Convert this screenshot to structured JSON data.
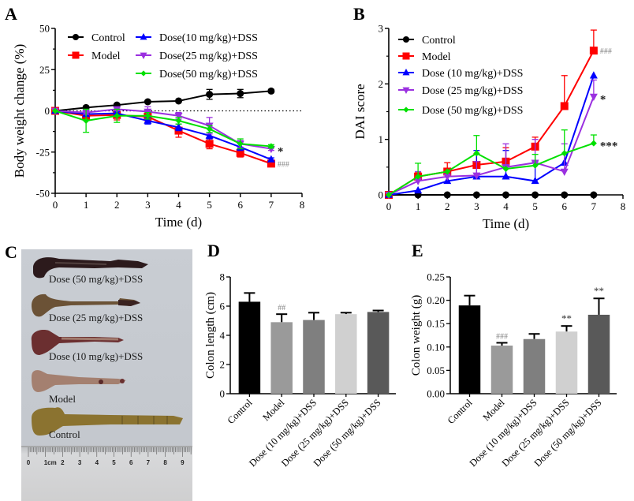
{
  "figure": {
    "panels": [
      "A",
      "B",
      "C",
      "D",
      "E"
    ]
  },
  "colors": {
    "Control": "#000000",
    "Model": "#ff0000",
    "Dose10": "#0000ff",
    "Dose25": "#9b30e0",
    "Dose50": "#00e000",
    "bar_control": "#000000",
    "bar_model": "#9a9a9a",
    "bar_dose10": "#7f7f7f",
    "bar_dose25": "#d0d0d0",
    "bar_dose50": "#595959",
    "sig_gray": "#888888"
  },
  "photo": {
    "letter": "C",
    "labels": [
      "Dose (50 mg/kg)+DSS",
      "Dose (25 mg/kg)+DSS",
      "Dose (10 mg/kg)+DSS",
      "Model",
      "Control"
    ],
    "ruler_numbers": [
      "0",
      "1cm",
      "2",
      "3",
      "4",
      "5",
      "6",
      "7",
      "8",
      "9"
    ]
  },
  "chart_data": [
    {
      "id": "A",
      "type": "line",
      "title": "",
      "xlabel": "Time (d)",
      "ylabel": "Body weight change (%)",
      "xlim": [
        0,
        8
      ],
      "ylim": [
        -50,
        50
      ],
      "xticks": [
        0,
        1,
        2,
        3,
        4,
        5,
        6,
        7,
        8
      ],
      "yticks": [
        -50,
        -25,
        0,
        25,
        50
      ],
      "ytick_labels": [
        "-50",
        "-25",
        "0",
        "25",
        "50"
      ],
      "reference_line": 0,
      "legend": "top",
      "x": [
        0,
        1,
        2,
        3,
        4,
        5,
        6,
        7
      ],
      "series": [
        {
          "name": "Control",
          "legend_label": "Control",
          "marker": "circle",
          "color_key": "Control",
          "values": [
            0,
            2,
            3.5,
            5.5,
            6,
            10,
            10.5,
            12
          ],
          "errors": [
            0,
            0.5,
            0.8,
            0.8,
            0.8,
            3,
            2.5,
            1
          ]
        },
        {
          "name": "Model",
          "legend_label": "Model",
          "marker": "square",
          "color_key": "Model",
          "values": [
            0,
            -3,
            -2.5,
            -3.5,
            -12,
            -20,
            -25.5,
            -32
          ],
          "errors": [
            0,
            2,
            3,
            3,
            4,
            3,
            2.5,
            1
          ]
        },
        {
          "name": "Dose10",
          "legend_label": "Dose(10 mg/kg)+DSS",
          "marker": "triangle-up",
          "color_key": "Dose10",
          "values": [
            0,
            -2,
            -1.5,
            -6,
            -10,
            -15,
            -22,
            -29.5
          ],
          "errors": [
            0,
            1,
            1,
            2,
            2,
            2,
            2,
            1
          ]
        },
        {
          "name": "Dose25",
          "legend_label": "Dose(25 mg/kg)+DSS",
          "marker": "triangle-down",
          "color_key": "Dose25",
          "values": [
            0,
            -1,
            1,
            -0.5,
            -3,
            -9,
            -20,
            -23
          ],
          "errors": [
            0,
            1,
            1,
            3,
            2,
            5,
            2,
            1
          ]
        },
        {
          "name": "Dose50",
          "legend_label": "Dose(50 mg/kg)+DSS",
          "marker": "diamond",
          "color_key": "Dose50",
          "values": [
            0,
            -6,
            -3,
            -3,
            -6,
            -11,
            -20,
            -21.5
          ],
          "errors": [
            0,
            7,
            4,
            2,
            2,
            2,
            3,
            1
          ]
        }
      ],
      "annotations": [
        {
          "text": "*",
          "x": 7,
          "y": -23,
          "color_key": "bold"
        },
        {
          "text": "###",
          "x": 7,
          "y": -32,
          "color_key": "sig_gray"
        }
      ]
    },
    {
      "id": "B",
      "type": "line",
      "title": "",
      "xlabel": "Time (d)",
      "ylabel": "DAI score",
      "xlim": [
        0,
        8
      ],
      "ylim": [
        0,
        3
      ],
      "xticks": [
        0,
        1,
        2,
        3,
        4,
        5,
        6,
        7,
        8
      ],
      "yticks": [
        0,
        1,
        2,
        3
      ],
      "ytick_labels": [
        "0",
        "1",
        "2",
        "3"
      ],
      "legend": "top-left",
      "x": [
        0,
        1,
        2,
        3,
        4,
        5,
        6,
        7
      ],
      "series": [
        {
          "name": "Control",
          "legend_label": "Control",
          "marker": "circle",
          "color_key": "Control",
          "values": [
            0,
            0,
            0,
            0,
            0,
            0,
            0,
            0
          ],
          "errors": [
            0,
            0,
            0,
            0,
            0,
            0,
            0,
            0
          ]
        },
        {
          "name": "Model",
          "legend_label": "Model",
          "marker": "square",
          "color_key": "Model",
          "values": [
            0,
            0.33,
            0.42,
            0.54,
            0.6,
            0.87,
            1.6,
            2.6
          ],
          "errors": [
            0,
            0.07,
            0.16,
            0.2,
            0.25,
            0.17,
            0.55,
            0.37
          ]
        },
        {
          "name": "Dose10",
          "legend_label": "Dose (10 mg/kg)+DSS",
          "marker": "triangle-up",
          "color_key": "Dose10",
          "values": [
            0,
            0.08,
            0.25,
            0.33,
            0.33,
            0.25,
            0.58,
            2.15
          ],
          "errors": [
            0,
            0,
            0,
            0.47,
            0.47,
            0.35,
            0.15,
            0
          ]
        },
        {
          "name": "Dose25",
          "legend_label": "Dose (25 mg/kg)+DSS",
          "marker": "triangle-down",
          "color_key": "Dose25",
          "values": [
            0,
            0.25,
            0.33,
            0.35,
            0.5,
            0.58,
            0.42,
            1.77
          ],
          "errors": [
            0,
            0.17,
            0,
            0.25,
            0.42,
            0.42,
            0.5,
            0.3
          ]
        },
        {
          "name": "Dose50",
          "legend_label": "Dose (50 mg/kg)+DSS",
          "marker": "diamond",
          "color_key": "Dose50",
          "values": [
            0,
            0.33,
            0.42,
            0.75,
            0.47,
            0.53,
            0.75,
            0.93
          ],
          "errors": [
            0,
            0.24,
            0,
            0.32,
            0,
            0.2,
            0.42,
            0.15
          ]
        }
      ],
      "annotations": [
        {
          "text": "###",
          "x": 7,
          "y": 2.6,
          "color_key": "sig_gray"
        },
        {
          "text": "*",
          "x": 7,
          "y": 1.77,
          "color_key": "bold"
        },
        {
          "text": "***",
          "x": 7,
          "y": 0.93,
          "color_key": "bold"
        }
      ]
    },
    {
      "id": "D",
      "type": "bar",
      "title": "",
      "xlabel": "",
      "ylabel": "Colon length (cm)",
      "ylim": [
        0,
        8
      ],
      "yticks": [
        0,
        2,
        4,
        6,
        8
      ],
      "ytick_labels": [
        "0",
        "2",
        "4",
        "6",
        "8"
      ],
      "categories": [
        "Control",
        "Model",
        "Dose (10 mg/kg)+DSS",
        "Dose (25 mg/kg)+DSS",
        "Dose (50 mg/kg)+DSS"
      ],
      "values": [
        6.3,
        4.9,
        5.05,
        5.45,
        5.6
      ],
      "errors": [
        0.6,
        0.55,
        0.5,
        0.1,
        0.1
      ],
      "bar_color_keys": [
        "bar_control",
        "bar_model",
        "bar_dose10",
        "bar_dose25",
        "bar_dose50"
      ],
      "annotations": [
        {
          "text": "##",
          "category": 1,
          "color_key": "sig_gray"
        }
      ]
    },
    {
      "id": "E",
      "type": "bar",
      "title": "",
      "xlabel": "",
      "ylabel": "Colon weight (g)",
      "ylim": [
        0,
        0.25
      ],
      "yticks": [
        0,
        0.05,
        0.1,
        0.15,
        0.2,
        0.25
      ],
      "ytick_labels": [
        "0.00",
        "0.05",
        "0.10",
        "0.15",
        "0.20",
        "0.25"
      ],
      "categories": [
        "Control",
        "Model",
        "Dose (10 mg/kg)+DSS",
        "Dose (25 mg/kg)+DSS",
        "Dose (50 mg/kg)+DSS"
      ],
      "values": [
        0.189,
        0.103,
        0.117,
        0.133,
        0.169
      ],
      "errors": [
        0.021,
        0.006,
        0.011,
        0.012,
        0.035
      ],
      "bar_color_keys": [
        "bar_control",
        "bar_model",
        "bar_dose10",
        "bar_dose25",
        "bar_dose50"
      ],
      "annotations": [
        {
          "text": "###",
          "category": 1,
          "color_key": "sig_gray"
        },
        {
          "text": "**",
          "category": 3,
          "color_key": "sig_dark"
        },
        {
          "text": "**",
          "category": 4,
          "color_key": "sig_dark"
        }
      ]
    }
  ]
}
